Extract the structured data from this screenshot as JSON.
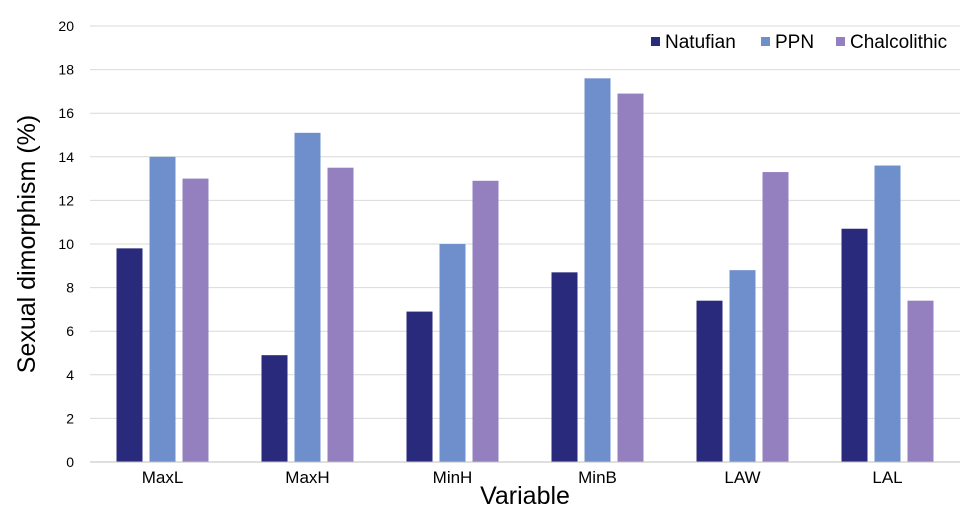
{
  "chart_data": {
    "type": "bar",
    "title": "",
    "xlabel": "Variable",
    "ylabel": "Sexual dimorphism (%)",
    "ylim": [
      0,
      20
    ],
    "yticks": [
      0,
      2,
      4,
      6,
      8,
      10,
      12,
      14,
      16,
      18,
      20
    ],
    "grid": true,
    "legend_position": "top-right",
    "categories": [
      "MaxL",
      "MaxH",
      "MinH",
      "MinB",
      "LAW",
      "LAL"
    ],
    "series": [
      {
        "name": "Natufian",
        "color": "#2a2a7c",
        "values": [
          9.8,
          4.9,
          6.9,
          8.7,
          7.4,
          10.7
        ]
      },
      {
        "name": "PPN",
        "color": "#6f8fcc",
        "values": [
          14.0,
          15.1,
          10.0,
          17.6,
          8.8,
          13.6
        ]
      },
      {
        "name": "Chalcolithic",
        "color": "#9580bf",
        "values": [
          13.0,
          13.5,
          12.9,
          16.9,
          13.3,
          7.4
        ]
      }
    ]
  }
}
